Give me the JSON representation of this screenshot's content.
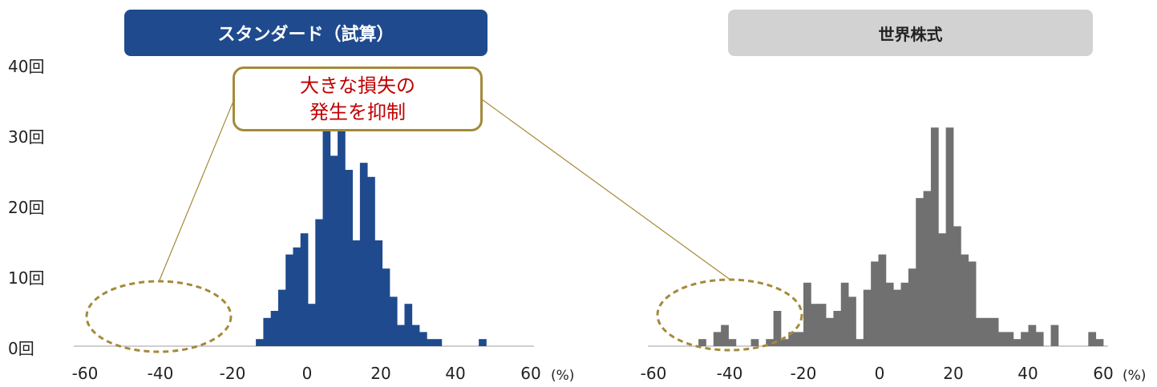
{
  "headers": {
    "left": "スタンダード（試算）",
    "right": "世界株式"
  },
  "callout": {
    "line1": "大きな損失",
    "line1_suffix": "の",
    "line2": "発生を抑制"
  },
  "colors": {
    "standard_header": "#1f4a8e",
    "standard_bars": "#1f4a8e",
    "world_header": "#d2d2d2",
    "world_bars": "#707070",
    "callout_text": "#c00000",
    "callout_border": "#a58a3a"
  },
  "y_ticks": [
    "0回",
    "10回",
    "20回",
    "30回",
    "40回"
  ],
  "x_ticks": [
    "-60",
    "-40",
    "-20",
    "0",
    "20",
    "40",
    "60"
  ],
  "x_unit": "(%)",
  "chart_data": [
    {
      "type": "bar",
      "name": "スタンダード（試算）",
      "x_label": "(%)",
      "xlim": [
        -60,
        60
      ],
      "ylim": [
        0,
        40
      ],
      "bin_width": 2,
      "bins": [
        [
          -14,
          1
        ],
        [
          -12,
          4
        ],
        [
          -10,
          5
        ],
        [
          -8,
          8
        ],
        [
          -6,
          13
        ],
        [
          -4,
          14
        ],
        [
          -2,
          16
        ],
        [
          0,
          6
        ],
        [
          2,
          18
        ],
        [
          4,
          31
        ],
        [
          6,
          27
        ],
        [
          8,
          31
        ],
        [
          10,
          25
        ],
        [
          12,
          15
        ],
        [
          14,
          26
        ],
        [
          16,
          24
        ],
        [
          18,
          15
        ],
        [
          20,
          11
        ],
        [
          22,
          7
        ],
        [
          24,
          3
        ],
        [
          26,
          6
        ],
        [
          28,
          3
        ],
        [
          30,
          2
        ],
        [
          32,
          1
        ],
        [
          34,
          1
        ],
        [
          46,
          1
        ]
      ]
    },
    {
      "type": "bar",
      "name": "世界株式",
      "x_label": "(%)",
      "xlim": [
        -60,
        60
      ],
      "ylim": [
        0,
        40
      ],
      "bin_width": 2,
      "bins": [
        [
          -48,
          1
        ],
        [
          -44,
          2
        ],
        [
          -42,
          3
        ],
        [
          -40,
          1
        ],
        [
          -34,
          1
        ],
        [
          -30,
          1
        ],
        [
          -28,
          5
        ],
        [
          -26,
          1
        ],
        [
          -24,
          2
        ],
        [
          -22,
          2
        ],
        [
          -20,
          9
        ],
        [
          -18,
          6
        ],
        [
          -16,
          6
        ],
        [
          -14,
          4
        ],
        [
          -12,
          5
        ],
        [
          -10,
          9
        ],
        [
          -8,
          7
        ],
        [
          -6,
          1
        ],
        [
          -4,
          8
        ],
        [
          -2,
          12
        ],
        [
          0,
          13
        ],
        [
          2,
          9
        ],
        [
          4,
          8
        ],
        [
          6,
          9
        ],
        [
          8,
          11
        ],
        [
          10,
          21
        ],
        [
          12,
          22
        ],
        [
          14,
          31
        ],
        [
          16,
          16
        ],
        [
          18,
          31
        ],
        [
          20,
          17
        ],
        [
          22,
          13
        ],
        [
          24,
          12
        ],
        [
          26,
          4
        ],
        [
          28,
          4
        ],
        [
          30,
          4
        ],
        [
          32,
          2
        ],
        [
          34,
          2
        ],
        [
          36,
          1
        ],
        [
          38,
          2
        ],
        [
          40,
          3
        ],
        [
          42,
          2
        ],
        [
          46,
          3
        ],
        [
          56,
          2
        ],
        [
          58,
          1
        ]
      ]
    }
  ]
}
